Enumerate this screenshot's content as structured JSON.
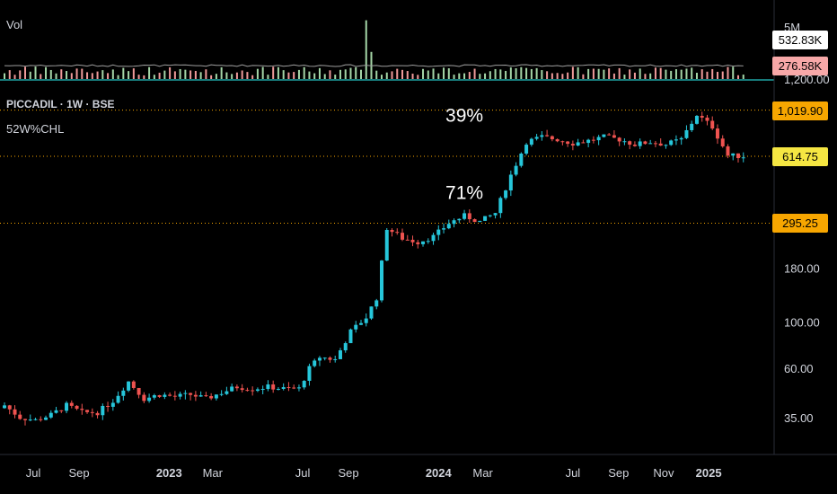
{
  "header": {
    "volume_label": "Vol",
    "symbol": "PICCADIL · 1W · BSE",
    "indicator": "52W%CHL"
  },
  "annotations": [
    {
      "text": "39%",
      "x": "2024-02-05",
      "price": 900
    },
    {
      "text": "71%",
      "x": "2024-02-05",
      "price": 385
    }
  ],
  "price_badges": [
    {
      "text": "1,019.90",
      "value": 1019.9,
      "bg": "#f7a600"
    },
    {
      "text": "614.75",
      "value": 614.75,
      "bg": "#f5e642"
    },
    {
      "text": "295.25",
      "value": 295.25,
      "bg": "#f7a600"
    }
  ],
  "volume_badges": [
    {
      "text": "532.83K",
      "bg": "#ffffff"
    },
    {
      "text": "276.58K",
      "bg": "#f7a8a8"
    }
  ],
  "colors": {
    "up": "#26c6da",
    "down": "#ef5350",
    "vol_up": "#a5d6a7",
    "vol_down": "#ef9a9a",
    "level_line": "#f7a600",
    "background": "#000000"
  },
  "chart_data": {
    "type": "candlestick",
    "title": "PICCADIL · 1W · BSE",
    "y_scale": "log",
    "y_ticks": [
      "35.00",
      "60.00",
      "100.00",
      "180.00"
    ],
    "volume_ticks": [
      "5M",
      "1,200.00"
    ],
    "x_ticks": [
      "Jul",
      "Sep",
      "2023",
      "Mar",
      "Jul",
      "Sep",
      "2024",
      "Mar",
      "Jul",
      "Sep",
      "Nov",
      "2025"
    ],
    "x_tick_dates": [
      "2022-07-01",
      "2022-09-01",
      "2023-01-01",
      "2023-03-01",
      "2023-07-01",
      "2023-09-01",
      "2024-01-01",
      "2024-03-01",
      "2024-07-01",
      "2024-09-01",
      "2024-11-01",
      "2025-01-01"
    ],
    "x_range": [
      "2022-05-23",
      "2025-03-10"
    ],
    "y_range": [
      26,
      1250
    ],
    "levels": [
      1019.9,
      614.75,
      295.25
    ],
    "series": [
      {
        "name": "price",
        "points": [
          {
            "date": "2022-05-23",
            "close": 40
          },
          {
            "date": "2022-06-13",
            "close": 35
          },
          {
            "date": "2022-07-04",
            "close": 34
          },
          {
            "date": "2022-07-25",
            "close": 36
          },
          {
            "date": "2022-08-15",
            "close": 40
          },
          {
            "date": "2022-09-05",
            "close": 37
          },
          {
            "date": "2022-09-26",
            "close": 37
          },
          {
            "date": "2022-10-17",
            "close": 42
          },
          {
            "date": "2022-11-07",
            "close": 52
          },
          {
            "date": "2022-11-28",
            "close": 43
          },
          {
            "date": "2022-12-19",
            "close": 45
          },
          {
            "date": "2023-01-09",
            "close": 44
          },
          {
            "date": "2023-01-30",
            "close": 45
          },
          {
            "date": "2023-02-20",
            "close": 43
          },
          {
            "date": "2023-03-13",
            "close": 46
          },
          {
            "date": "2023-04-03",
            "close": 49
          },
          {
            "date": "2023-04-24",
            "close": 48
          },
          {
            "date": "2023-05-15",
            "close": 49
          },
          {
            "date": "2023-06-05",
            "close": 48
          },
          {
            "date": "2023-06-26",
            "close": 48
          },
          {
            "date": "2023-07-10",
            "close": 60
          },
          {
            "date": "2023-07-24",
            "close": 68
          },
          {
            "date": "2023-08-14",
            "close": 66
          },
          {
            "date": "2023-09-04",
            "close": 90
          },
          {
            "date": "2023-09-25",
            "close": 105
          },
          {
            "date": "2023-10-09",
            "close": 130
          },
          {
            "date": "2023-10-23",
            "close": 280
          },
          {
            "date": "2023-11-13",
            "close": 250
          },
          {
            "date": "2023-12-04",
            "close": 240
          },
          {
            "date": "2023-12-25",
            "close": 255
          },
          {
            "date": "2024-01-15",
            "close": 295
          },
          {
            "date": "2024-02-05",
            "close": 320
          },
          {
            "date": "2024-02-26",
            "close": 300
          },
          {
            "date": "2024-03-18",
            "close": 330
          },
          {
            "date": "2024-04-08",
            "close": 500
          },
          {
            "date": "2024-04-29",
            "close": 720
          },
          {
            "date": "2024-05-20",
            "close": 760
          },
          {
            "date": "2024-06-10",
            "close": 740
          },
          {
            "date": "2024-07-01",
            "close": 710
          },
          {
            "date": "2024-07-22",
            "close": 730
          },
          {
            "date": "2024-08-12",
            "close": 760
          },
          {
            "date": "2024-09-02",
            "close": 740
          },
          {
            "date": "2024-09-23",
            "close": 700
          },
          {
            "date": "2024-10-14",
            "close": 720
          },
          {
            "date": "2024-11-04",
            "close": 700
          },
          {
            "date": "2024-11-25",
            "close": 740
          },
          {
            "date": "2024-12-16",
            "close": 970
          },
          {
            "date": "2025-01-06",
            "close": 850
          },
          {
            "date": "2025-01-27",
            "close": 620
          },
          {
            "date": "2025-02-17",
            "close": 615
          }
        ]
      }
    ]
  }
}
